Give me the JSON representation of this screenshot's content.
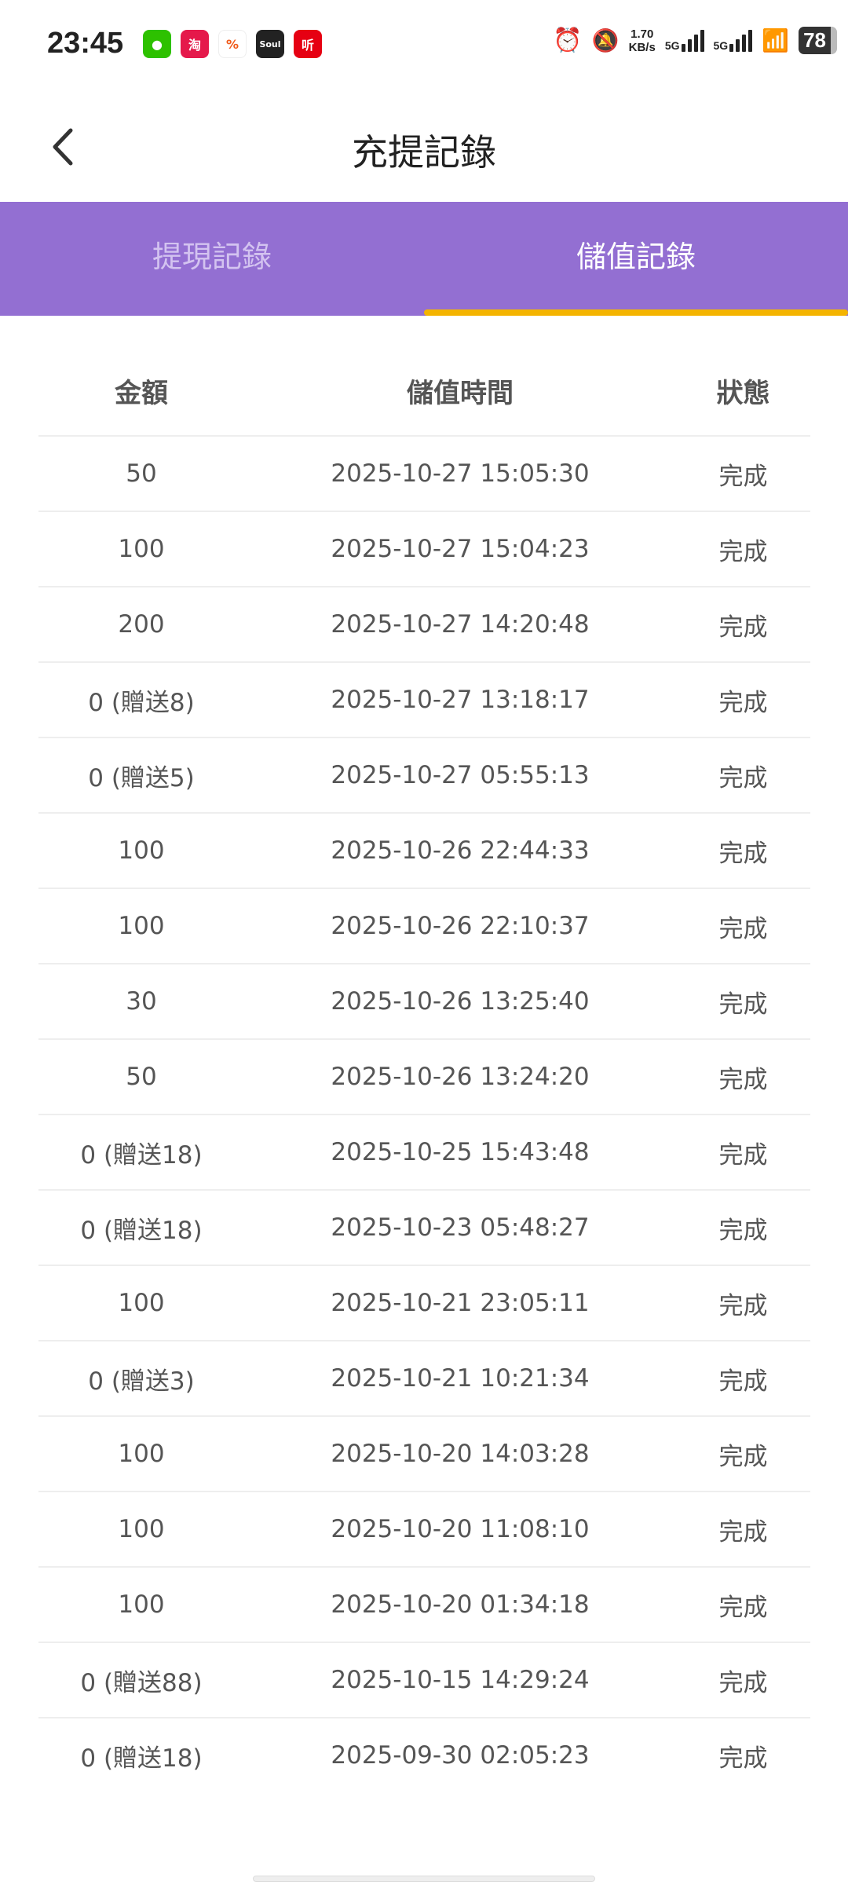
{
  "status_bar": {
    "time": "23:45",
    "apps": [
      "微",
      "淘",
      "%",
      "Soul",
      "听"
    ],
    "speed": "1.70",
    "speed_unit": "KB/s",
    "net1": "5G",
    "net2": "5G",
    "battery": "78"
  },
  "header": {
    "title": "充提記錄"
  },
  "tabs": [
    {
      "label": "提現記錄",
      "active": false
    },
    {
      "label": "儲值記錄",
      "active": true
    }
  ],
  "colors": {
    "tab_bg": "#936fd2",
    "underline": "#f4b400"
  },
  "table": {
    "headers": [
      "金額",
      "儲值時間",
      "狀態"
    ],
    "rows": [
      [
        "50",
        "2025-10-27 15:05:30",
        "完成"
      ],
      [
        "100",
        "2025-10-27 15:04:23",
        "完成"
      ],
      [
        "200",
        "2025-10-27 14:20:48",
        "完成"
      ],
      [
        "0 (贈送8)",
        "2025-10-27 13:18:17",
        "完成"
      ],
      [
        "0 (贈送5)",
        "2025-10-27 05:55:13",
        "完成"
      ],
      [
        "100",
        "2025-10-26 22:44:33",
        "完成"
      ],
      [
        "100",
        "2025-10-26 22:10:37",
        "完成"
      ],
      [
        "30",
        "2025-10-26 13:25:40",
        "完成"
      ],
      [
        "50",
        "2025-10-26 13:24:20",
        "完成"
      ],
      [
        "0 (贈送18)",
        "2025-10-25 15:43:48",
        "完成"
      ],
      [
        "0 (贈送18)",
        "2025-10-23 05:48:27",
        "完成"
      ],
      [
        "100",
        "2025-10-21 23:05:11",
        "完成"
      ],
      [
        "0 (贈送3)",
        "2025-10-21 10:21:34",
        "完成"
      ],
      [
        "100",
        "2025-10-20 14:03:28",
        "完成"
      ],
      [
        "100",
        "2025-10-20 11:08:10",
        "完成"
      ],
      [
        "100",
        "2025-10-20 01:34:18",
        "完成"
      ],
      [
        "0 (贈送88)",
        "2025-10-15 14:29:24",
        "完成"
      ],
      [
        "0 (贈送18)",
        "2025-09-30 02:05:23",
        "完成"
      ]
    ]
  }
}
